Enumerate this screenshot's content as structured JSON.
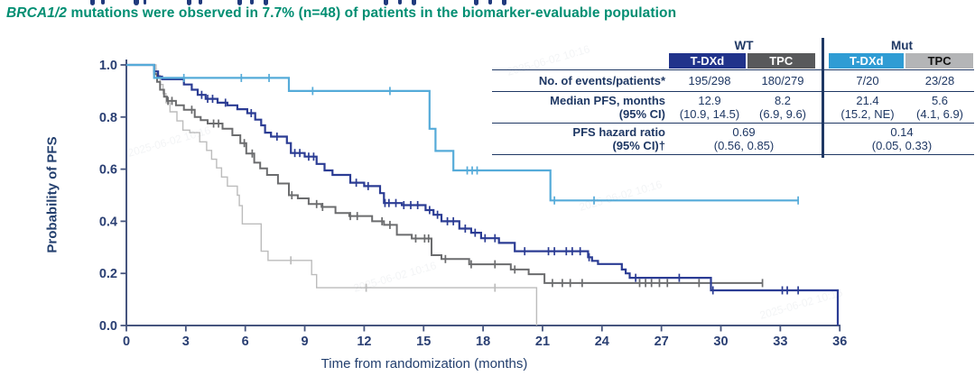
{
  "header": {
    "subtitle_italic": "BRCA1/2",
    "subtitle_rest": " mutations were observed in 7.7% (n=48) of patients in the biomarker-evaluable population"
  },
  "watermark": {
    "text": "2025-06-02 10:16"
  },
  "table": {
    "group_headers": [
      "WT",
      "Mut"
    ],
    "columns": [
      "T-DXd",
      "TPC",
      "T-DXd",
      "TPC"
    ],
    "column_colors": [
      "#21338b",
      "#58595b",
      "#2f9cd4",
      "#b4b5b7"
    ],
    "rows": {
      "events": {
        "label": "No. of events/patients*",
        "values": [
          "195/298",
          "180/279",
          "7/20",
          "23/28"
        ]
      },
      "median": {
        "label_line1": "Median PFS, months",
        "label_line2": "(95% CI)",
        "values_line1": [
          "12.9",
          "8.2",
          "21.4",
          "5.6"
        ],
        "values_line2": [
          "(10.9, 14.5)",
          "(6.9, 9.6)",
          "(15.2, NE)",
          "(4.1, 6.9)"
        ]
      },
      "hr": {
        "label_line1": "PFS hazard ratio",
        "label_line2": "(95% CI)†",
        "wt_value": "0.69",
        "wt_ci": "(0.56, 0.85)",
        "mut_value": "0.14",
        "mut_ci": "(0.05, 0.33)"
      }
    }
  },
  "chart_data": {
    "type": "line",
    "subtype": "kaplan-meier",
    "title": "",
    "xlabel": "Time from randomization (months)",
    "ylabel": "Probability of PFS",
    "xlim": [
      0,
      36
    ],
    "ylim": [
      0.0,
      1.0
    ],
    "grid": false,
    "x_ticks": [
      0,
      3,
      6,
      9,
      12,
      15,
      18,
      21,
      24,
      27,
      30,
      33,
      36
    ],
    "y_ticks": [
      "0.0",
      "0.2",
      "0.4",
      "0.6",
      "0.8",
      "1.0"
    ],
    "series": [
      {
        "id": "mut-tpc",
        "name": "Mut TPC",
        "color": "#bcbcbc",
        "width": 1.4,
        "steps": [
          [
            1.5,
            0.96
          ],
          [
            1.7,
            0.925
          ],
          [
            1.85,
            0.89
          ],
          [
            2.0,
            0.855
          ],
          [
            2.2,
            0.82
          ],
          [
            2.55,
            0.785
          ],
          [
            2.85,
            0.75
          ],
          [
            3.2,
            0.74
          ],
          [
            3.7,
            0.705
          ],
          [
            4.05,
            0.672
          ],
          [
            4.3,
            0.638
          ],
          [
            4.55,
            0.605
          ],
          [
            4.8,
            0.57
          ],
          [
            5.1,
            0.535
          ],
          [
            5.6,
            0.5
          ],
          [
            5.7,
            0.46
          ],
          [
            5.85,
            0.39
          ],
          [
            6.8,
            0.285
          ],
          [
            7.15,
            0.25
          ],
          [
            9.35,
            0.195
          ],
          [
            9.6,
            0.145
          ],
          [
            20.7,
            0
          ]
        ],
        "censor_times": [
          8.3,
          12.1,
          18.6
        ],
        "end_t": 20.7
      },
      {
        "id": "wt-tpc",
        "name": "WT TPC",
        "color": "#6b6c6e",
        "width": 2,
        "steps": [
          [
            1.4,
            0.965
          ],
          [
            1.55,
            0.935
          ],
          [
            1.7,
            0.905
          ],
          [
            1.9,
            0.878
          ],
          [
            2.05,
            0.862
          ],
          [
            2.5,
            0.845
          ],
          [
            2.9,
            0.828
          ],
          [
            3.45,
            0.8
          ],
          [
            3.75,
            0.788
          ],
          [
            4.1,
            0.775
          ],
          [
            4.85,
            0.755
          ],
          [
            5.35,
            0.73
          ],
          [
            5.75,
            0.7
          ],
          [
            6.05,
            0.66
          ],
          [
            6.45,
            0.625
          ],
          [
            6.75,
            0.603
          ],
          [
            7.1,
            0.578
          ],
          [
            7.65,
            0.545
          ],
          [
            8.2,
            0.5
          ],
          [
            8.65,
            0.488
          ],
          [
            9.2,
            0.466
          ],
          [
            9.85,
            0.455
          ],
          [
            10.55,
            0.432
          ],
          [
            11.25,
            0.42
          ],
          [
            12.4,
            0.4
          ],
          [
            13.0,
            0.386
          ],
          [
            13.65,
            0.348
          ],
          [
            14.4,
            0.334
          ],
          [
            15.4,
            0.27
          ],
          [
            15.9,
            0.255
          ],
          [
            17.3,
            0.235
          ],
          [
            19.4,
            0.215
          ],
          [
            20.3,
            0.197
          ],
          [
            21.1,
            0.163
          ]
        ],
        "censor_times": [
          2.1,
          2.3,
          3.3,
          4.4,
          4.65,
          5.95,
          6.35,
          8.35,
          9.6,
          9.9,
          11.3,
          11.65,
          12.9,
          13.3,
          14.6,
          15.05,
          15.25,
          16.1,
          17.4,
          18.6,
          19.6,
          21.5,
          22.0,
          22.4,
          23.0,
          25.9,
          26.2,
          26.5,
          26.9,
          27.3,
          28.9,
          32.1
        ],
        "end_t": 32.1
      },
      {
        "id": "wt-tdxd",
        "name": "WT T-DXd",
        "color": "#2b3c94",
        "width": 2.2,
        "steps": [
          [
            1.4,
            0.975
          ],
          [
            1.6,
            0.955
          ],
          [
            1.8,
            0.945
          ],
          [
            2.9,
            0.925
          ],
          [
            3.3,
            0.905
          ],
          [
            3.6,
            0.885
          ],
          [
            4.0,
            0.87
          ],
          [
            4.6,
            0.855
          ],
          [
            5.1,
            0.845
          ],
          [
            5.6,
            0.83
          ],
          [
            6.1,
            0.815
          ],
          [
            6.5,
            0.79
          ],
          [
            6.8,
            0.768
          ],
          [
            7.0,
            0.74
          ],
          [
            7.3,
            0.725
          ],
          [
            8.1,
            0.7
          ],
          [
            8.3,
            0.662
          ],
          [
            9.0,
            0.648
          ],
          [
            9.6,
            0.62
          ],
          [
            10.0,
            0.595
          ],
          [
            10.4,
            0.578
          ],
          [
            11.3,
            0.548
          ],
          [
            12.0,
            0.535
          ],
          [
            12.8,
            0.508
          ],
          [
            13.0,
            0.47
          ],
          [
            13.9,
            0.462
          ],
          [
            15.1,
            0.443
          ],
          [
            15.5,
            0.425
          ],
          [
            15.9,
            0.4
          ],
          [
            16.8,
            0.372
          ],
          [
            17.4,
            0.356
          ],
          [
            17.9,
            0.335
          ],
          [
            18.8,
            0.317
          ],
          [
            19.6,
            0.285
          ],
          [
            23.3,
            0.262
          ],
          [
            23.5,
            0.248
          ],
          [
            23.8,
            0.236
          ],
          [
            25.0,
            0.215
          ],
          [
            25.2,
            0.2
          ],
          [
            25.4,
            0.183
          ],
          [
            29.5,
            0.135
          ],
          [
            35.9,
            0
          ]
        ],
        "censor_times": [
          3.8,
          4.1,
          4.35,
          5.0,
          6.3,
          7.6,
          8.5,
          8.75,
          9.2,
          9.45,
          11.6,
          12.2,
          13.05,
          13.25,
          13.6,
          14.0,
          14.35,
          14.7,
          15.3,
          15.7,
          16.2,
          16.5,
          17.1,
          17.6,
          18.1,
          18.6,
          20.1,
          21.3,
          21.6,
          22.2,
          22.5,
          22.9,
          23.35,
          25.7,
          27.9,
          29.6,
          33.1,
          33.35,
          33.9
        ],
        "end_t": 35.9
      },
      {
        "id": "mut-tdxd",
        "name": "Mut T-DXd",
        "color": "#55abd9",
        "width": 2.2,
        "steps": [
          [
            1.4,
            0.95
          ],
          [
            8.2,
            0.9
          ],
          [
            15.3,
            0.755
          ],
          [
            15.6,
            0.67
          ],
          [
            16.5,
            0.595
          ],
          [
            21.4,
            0.48
          ]
        ],
        "censor_times": [
          2.9,
          5.8,
          7.2,
          9.4,
          13.3,
          17.2,
          17.45,
          17.7,
          21.6,
          23.6,
          33.9
        ],
        "end_t": 33.9
      }
    ]
  }
}
